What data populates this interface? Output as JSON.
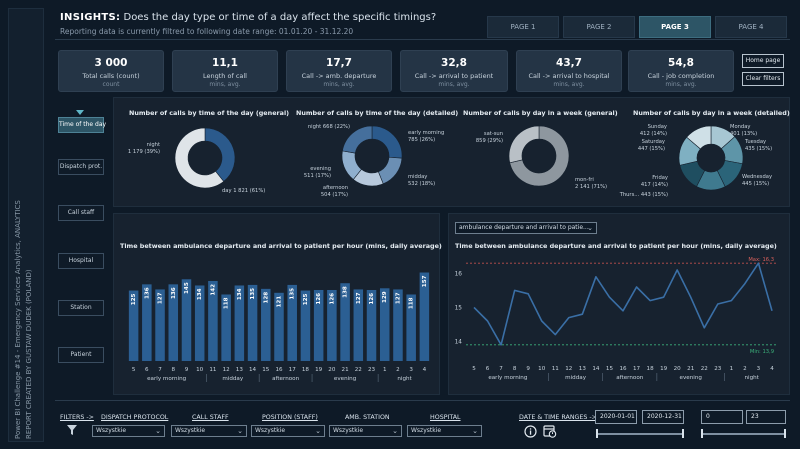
{
  "sidebar": {
    "line1": "Power BI Challenge #14 - Emergency Services Analytics, ANALYTICS",
    "line2": "REPORT CREATED BY GUSTAW DUDEK (POLAND)"
  },
  "header": {
    "title_prefix": "INSIGHTS:",
    "title_text": " Does the day type or time of a day affect the specific timings?",
    "subtitle": "Reporting data is currently filtred to following date range: 01.01.20 - 31.12.20"
  },
  "pages": [
    {
      "label": "PAGE 1",
      "active": false
    },
    {
      "label": "PAGE 2",
      "active": false
    },
    {
      "label": "PAGE 3",
      "active": true
    },
    {
      "label": "PAGE 4",
      "active": false
    }
  ],
  "kpis": [
    {
      "value": "3 000",
      "label": "Total calls (count)",
      "unit": "count"
    },
    {
      "value": "11,1",
      "label": "Length of call",
      "unit": "mins, avg."
    },
    {
      "value": "17,7",
      "label": "Call -> amb. departure",
      "unit": "mins, avg."
    },
    {
      "value": "32,8",
      "label": "Call -> arrival to patient",
      "unit": "mins, avg."
    },
    {
      "value": "43,7",
      "label": "Call -> arrival to hospital",
      "unit": "mins, avg."
    },
    {
      "value": "54,8",
      "label": "Call - job completion",
      "unit": "mins, avg."
    }
  ],
  "buttons": {
    "home": "Home page",
    "clear": "Clear filters"
  },
  "nav": [
    {
      "label": "Time of the day",
      "active": true
    },
    {
      "label": "Dispatch prot.",
      "active": false
    },
    {
      "label": "Call staff",
      "active": false
    },
    {
      "label": "Hospital",
      "active": false
    },
    {
      "label": "Station",
      "active": false
    },
    {
      "label": "Patient",
      "active": false
    }
  ],
  "donuts": {
    "general": {
      "title": "Number of calls by time of the day (general)",
      "slices": [
        {
          "label1": "night",
          "label2": "1 179 (39%)",
          "value": 1179,
          "color": "#2b5a8c"
        },
        {
          "label1": "day 1 821 (61%)",
          "label2": "",
          "value": 1821,
          "color": "#dfe4e8"
        }
      ]
    },
    "detailed": {
      "title": "Number of calls by time of the day (detailed)",
      "slices": [
        {
          "label1": "early morning",
          "label2": "785 (26%)",
          "value": 785,
          "color": "#2b5a8c"
        },
        {
          "label1": "midday",
          "label2": "532 (18%)",
          "value": 532,
          "color": "#6b8fb4"
        },
        {
          "label1": "afternoon",
          "label2": "504 (17%)",
          "value": 504,
          "color": "#b7c9dc"
        },
        {
          "label1": "evening",
          "label2": "511 (17%)",
          "value": 511,
          "color": "#8fafce"
        },
        {
          "label1": "night 668 (22%)",
          "label2": "",
          "value": 668,
          "color": "#456f9c"
        }
      ]
    },
    "week_general": {
      "title": "Number of calls by day in a week (general)",
      "slices": [
        {
          "label1": "mon-fri",
          "label2": "2 141 (71%)",
          "value": 2141,
          "color": "#8e979f"
        },
        {
          "label1": "sat-sun",
          "label2": "859 (29%)",
          "value": 859,
          "color": "#b9c0c6"
        }
      ]
    },
    "week_detailed": {
      "title": "Number of calls by day in a week (detailed)",
      "slices": [
        {
          "label1": "Monday",
          "label2": "401 (13%)",
          "value": 401,
          "color": "#a7c7d3"
        },
        {
          "label1": "Tuesday",
          "label2": "435 (15%)",
          "value": 435,
          "color": "#5e95a8"
        },
        {
          "label1": "Wednesday",
          "label2": "445 (15%)",
          "value": 445,
          "color": "#2b6479"
        },
        {
          "label1": "Thurs... 443 (15%)",
          "label2": "",
          "value": 443,
          "color": "#3f7a8f"
        },
        {
          "label1": "Friday",
          "label2": "417 (14%)",
          "value": 417,
          "color": "#1f4e60"
        },
        {
          "label1": "Saturday",
          "label2": "447 (15%)",
          "value": 447,
          "color": "#7fb0c2"
        },
        {
          "label1": "Sunday",
          "label2": "412 (14%)",
          "value": 412,
          "color": "#cfe0e7"
        }
      ]
    }
  },
  "dropdown_selector": "ambulance departure and arrival to patie...",
  "chart_data": [
    {
      "type": "bar",
      "title": "Time between ambulance departure and arrival to patient per hour (mins, daily average)",
      "categories": [
        "5",
        "6",
        "7",
        "8",
        "9",
        "10",
        "11",
        "12",
        "13",
        "14",
        "15",
        "16",
        "17",
        "18",
        "19",
        "20",
        "21",
        "22",
        "23",
        "1",
        "2",
        "3",
        "4"
      ],
      "values": [
        125,
        136,
        127,
        136,
        145,
        134,
        142,
        118,
        134,
        135,
        128,
        121,
        135,
        125,
        126,
        126,
        138,
        127,
        126,
        129,
        127,
        118,
        157
      ],
      "group_labels": [
        "early morning",
        "midday",
        "afternoon",
        "evening",
        "night"
      ],
      "ylim": [
        0,
        165
      ]
    },
    {
      "type": "line",
      "title": "Time between ambulance departure and arrival to patient per hour (mins, daily average)",
      "categories": [
        "5",
        "6",
        "7",
        "8",
        "9",
        "10",
        "11",
        "12",
        "13",
        "14",
        "15",
        "16",
        "17",
        "18",
        "19",
        "20",
        "21",
        "22",
        "23",
        "1",
        "2",
        "3",
        "4"
      ],
      "values": [
        15.0,
        14.6,
        13.9,
        15.5,
        15.4,
        14.6,
        14.2,
        14.7,
        14.8,
        15.9,
        15.3,
        14.9,
        15.6,
        15.2,
        15.3,
        16.1,
        15.3,
        14.4,
        15.1,
        15.2,
        15.7,
        16.3,
        14.9
      ],
      "y_ticks": [
        14,
        15,
        16
      ],
      "ylim": [
        13.6,
        16.6
      ],
      "max_line": {
        "label": "Max: 16,3",
        "value": 16.3
      },
      "min_line": {
        "label": "Min: 13,9",
        "value": 13.9
      },
      "group_labels": [
        "early morning",
        "midday",
        "afternoon",
        "evening",
        "night"
      ]
    }
  ],
  "filters": {
    "title": "FILTERS ->",
    "items": [
      {
        "label": "DISPATCH PROTOCOL",
        "value": "Wszystkie",
        "underline": true
      },
      {
        "label": "CALL STAFF",
        "value": "Wszystkie",
        "underline": true
      },
      {
        "label": "POSITION (STAFF)",
        "value": "Wszystkie",
        "underline": true
      },
      {
        "label": "AMB. STATION",
        "value": "Wszystkie",
        "underline": false
      },
      {
        "label": "HOSPITAL",
        "value": "Wszystkie",
        "underline": true
      }
    ],
    "date_title": "DATE & TIME RANGES ->",
    "date_from": "2020-01-01",
    "date_to": "2020-12-31",
    "hour_from": "0",
    "hour_to": "23"
  }
}
